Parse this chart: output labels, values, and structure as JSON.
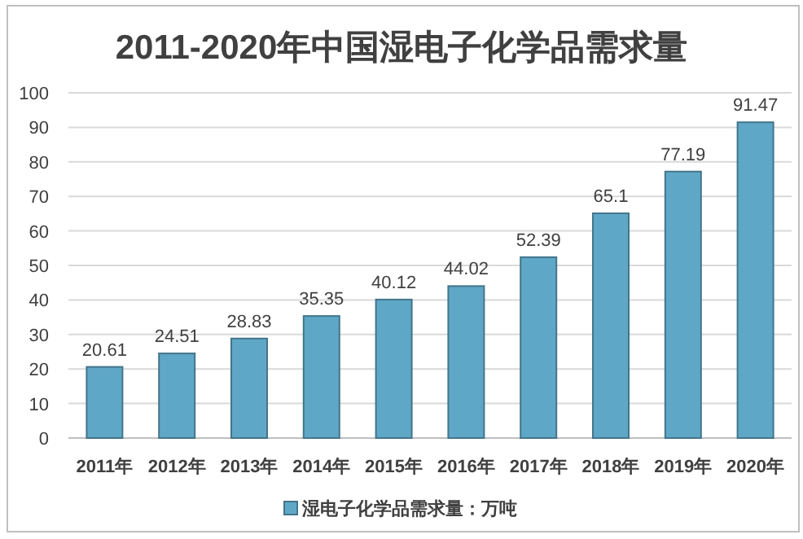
{
  "chart_data": {
    "type": "bar",
    "title": "2011-2020年中国湿电子化学品需求量",
    "categories": [
      "2011年",
      "2012年",
      "2013年",
      "2014年",
      "2015年",
      "2016年",
      "2017年",
      "2018年",
      "2019年",
      "2020年"
    ],
    "series": [
      {
        "name": "湿电子化学品需求量：万吨",
        "color": "#5fa7c6",
        "values": [
          20.61,
          24.51,
          28.83,
          35.35,
          40.12,
          44.02,
          52.39,
          65.1,
          77.19,
          91.47
        ]
      }
    ],
    "ylim": [
      0,
      100
    ],
    "yticks": [
      0,
      10,
      20,
      30,
      40,
      50,
      60,
      70,
      80,
      90,
      100
    ],
    "grid": "y",
    "legend": "bottom",
    "data_labels": true
  }
}
